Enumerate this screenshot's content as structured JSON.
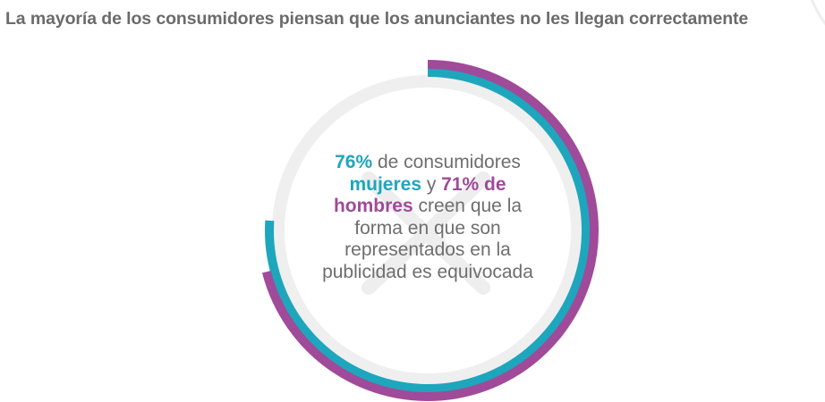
{
  "title": "La mayoría de los consumidores piensan que los anunciantes no les llegan correctamente",
  "colors": {
    "women": "#1ea6bd",
    "men": "#a04a9a",
    "track": "#efefef",
    "text": "#6e6e6e",
    "title": "#6b6b6b"
  },
  "center_text": {
    "pct_women": "76%",
    "t1": " de consumidores ",
    "women_label": "mujeres",
    "t2": " y ",
    "pct_men": "71% de",
    "t3": " ",
    "men_label": "hombres",
    "t4": " creen que la forma en que son representados en la publicidad es equivocada"
  },
  "chart_data": {
    "type": "radial-progress",
    "title": "La mayoría de los consumidores piensan que los anunciantes no les llegan correctamente",
    "series": [
      {
        "name": "Mujeres",
        "value": 76,
        "color": "#1ea6bd"
      },
      {
        "name": "Hombres",
        "value": 71,
        "color": "#a04a9a"
      }
    ],
    "max": 100,
    "annotation": "76% de consumidores mujeres y 71% de hombres creen que la forma en que son representados en la publicidad es equivocada"
  }
}
